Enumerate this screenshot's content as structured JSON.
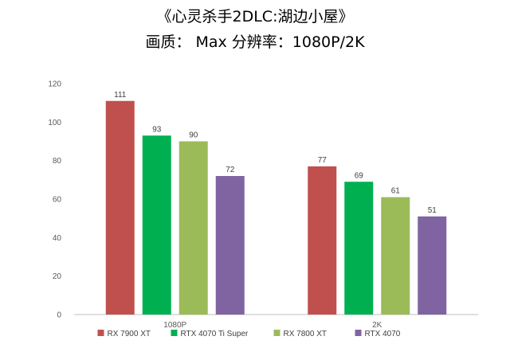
{
  "header": {
    "title": "《心灵杀手2DLC:湖边小屋》",
    "subtitle": "画质：  Max     分辨率：1080P/2K"
  },
  "chart_data": {
    "type": "bar",
    "title": "《心灵杀手2DLC:湖边小屋》",
    "subtitle": "画质：  Max     分辨率：1080P/2K",
    "categories": [
      "1080P",
      "2K"
    ],
    "series": [
      {
        "name": "RX 7900 XT",
        "values": [
          111,
          77
        ],
        "color": "#c0504d"
      },
      {
        "name": "RTX 4070 Ti Super",
        "values": [
          93,
          69
        ],
        "color": "#00b050"
      },
      {
        "name": "RX 7800 XT",
        "values": [
          90,
          61
        ],
        "color": "#9bbb59"
      },
      {
        "name": "RTX 4070",
        "values": [
          72,
          51
        ],
        "color": "#8064a2"
      }
    ],
    "ylim": [
      0,
      120
    ],
    "yticks": [
      0,
      20,
      40,
      60,
      80,
      100,
      120
    ],
    "grid": false,
    "legend": "bottom",
    "xlabel": "",
    "ylabel": ""
  }
}
